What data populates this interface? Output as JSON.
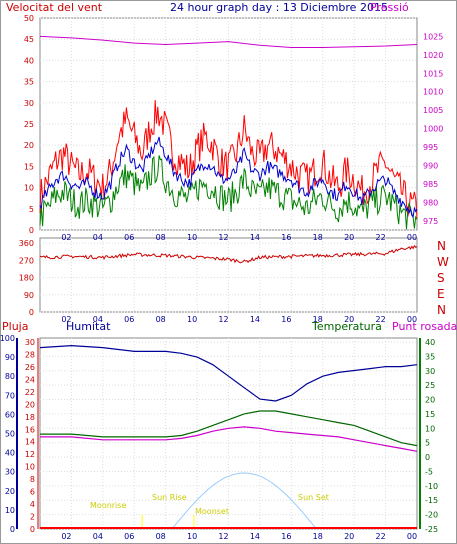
{
  "header": {
    "left_label": "Velocitat del vent",
    "title": "24 hour graph day : 13 Diciembre 2015",
    "right_label": "Pressió"
  },
  "x_ticks": [
    "02",
    "04",
    "06",
    "08",
    "10",
    "12",
    "14",
    "16",
    "18",
    "20",
    "22",
    "00"
  ],
  "bottom_labels": {
    "pluja": "Pluja",
    "humitat": "Humitat",
    "temperatura": "Temperatura",
    "punt_rosada": "Punt rosada"
  },
  "astro_labels": {
    "moonrise": "Moonrise",
    "sunrise": "Sun Rise",
    "moonset": "Moonset",
    "sunset": "Sun Set"
  },
  "compass": [
    "N",
    "W",
    "S",
    "E",
    "N"
  ],
  "colors": {
    "wind": "#cc0000",
    "gust": "#ff0000",
    "avg": "#0000cc",
    "low": "#008000",
    "pressure": "#cc00cc",
    "humidity": "#000099",
    "temperature": "#006600",
    "dewpoint": "#cc00cc",
    "rain": "#ff0000",
    "sun": "#99ccff",
    "moon": "#ffff00"
  },
  "chart_data": [
    {
      "type": "line",
      "name": "wind-chart",
      "x_range": [
        0,
        24
      ],
      "y_left_ticks": [
        0,
        5,
        10,
        15,
        20,
        25,
        30,
        35,
        40,
        45,
        50
      ],
      "y_right_ticks": [
        975,
        980,
        985,
        990,
        995,
        1000,
        1005,
        1010,
        1015,
        1020,
        1025
      ],
      "ylim_left": [
        0,
        50
      ],
      "ylim_right": [
        972.5,
        1030
      ],
      "series": [
        {
          "role": "gust",
          "x": [
            0,
            0.5,
            1,
            1.5,
            2,
            2.5,
            3,
            3.5,
            4,
            4.5,
            5,
            5.5,
            6,
            6.5,
            7,
            7.5,
            8,
            8.5,
            9,
            9.5,
            10,
            10.5,
            11,
            11.5,
            12,
            12.5,
            13,
            13.5,
            14,
            14.5,
            15,
            15.5,
            16,
            16.5,
            17,
            17.5,
            18,
            18.5,
            19,
            19.5,
            20,
            20.5,
            21,
            21.5,
            22,
            22.5,
            23,
            23.5,
            24
          ],
          "values": [
            8,
            12,
            16,
            18,
            15,
            13,
            14,
            12,
            10,
            14,
            22,
            26,
            22,
            18,
            24,
            28,
            24,
            18,
            16,
            14,
            19,
            22,
            20,
            16,
            15,
            18,
            24,
            18,
            17,
            20,
            19,
            17,
            15,
            13,
            12,
            14,
            16,
            12,
            10,
            14,
            12,
            9,
            11,
            14,
            16,
            12,
            9,
            6,
            5
          ]
        },
        {
          "role": "average",
          "x": [
            0,
            0.5,
            1,
            1.5,
            2,
            2.5,
            3,
            3.5,
            4,
            4.5,
            5,
            5.5,
            6,
            6.5,
            7,
            7.5,
            8,
            8.5,
            9,
            9.5,
            10,
            10.5,
            11,
            11.5,
            12,
            12.5,
            13,
            13.5,
            14,
            14.5,
            15,
            15.5,
            16,
            16.5,
            17,
            17.5,
            18,
            18.5,
            19,
            19.5,
            20,
            20.5,
            21,
            21.5,
            22,
            22.5,
            23,
            23.5,
            24
          ],
          "values": [
            6,
            9,
            12,
            13,
            11,
            10,
            11,
            9,
            8,
            11,
            16,
            19,
            16,
            14,
            18,
            21,
            18,
            14,
            12,
            11,
            14,
            16,
            15,
            12,
            12,
            14,
            18,
            14,
            13,
            15,
            14,
            13,
            12,
            10,
            9,
            11,
            12,
            9,
            8,
            11,
            9,
            7,
            9,
            11,
            12,
            9,
            7,
            5,
            4
          ]
        },
        {
          "role": "low",
          "x": [
            0,
            0.5,
            1,
            1.5,
            2,
            2.5,
            3,
            3.5,
            4,
            4.5,
            5,
            5.5,
            6,
            6.5,
            7,
            7.5,
            8,
            8.5,
            9,
            9.5,
            10,
            10.5,
            11,
            11.5,
            12,
            12.5,
            13,
            13.5,
            14,
            14.5,
            15,
            15.5,
            16,
            16.5,
            17,
            17.5,
            18,
            18.5,
            19,
            19.5,
            20,
            20.5,
            21,
            21.5,
            22,
            22.5,
            23,
            23.5,
            24
          ],
          "values": [
            3,
            5,
            8,
            9,
            7,
            6,
            7,
            6,
            5,
            7,
            11,
            13,
            11,
            9,
            13,
            15,
            12,
            9,
            8,
            7,
            10,
            11,
            10,
            8,
            7,
            9,
            12,
            9,
            8,
            10,
            9,
            8,
            7,
            6,
            5,
            7,
            8,
            6,
            5,
            7,
            6,
            4,
            6,
            7,
            8,
            6,
            4,
            3,
            2
          ]
        },
        {
          "role": "pressure",
          "axis": "right",
          "x": [
            0,
            2,
            4,
            6,
            8,
            10,
            12,
            14,
            16,
            18,
            20,
            22,
            24
          ],
          "values": [
            1025,
            1024.6,
            1024,
            1023.2,
            1022.8,
            1023.2,
            1023.6,
            1022.6,
            1022,
            1022,
            1022.2,
            1022.4,
            1022.8
          ]
        }
      ]
    },
    {
      "type": "line",
      "name": "wind-direction-chart",
      "x_range": [
        0,
        24
      ],
      "y_left_ticks": [
        0,
        90,
        180,
        270,
        360
      ],
      "ylim": [
        0,
        360
      ],
      "series": [
        {
          "role": "direction",
          "x": [
            0,
            2,
            4,
            6,
            8,
            10,
            12,
            13,
            14,
            16,
            18,
            20,
            22,
            23,
            24
          ],
          "values": [
            285,
            290,
            285,
            300,
            295,
            285,
            275,
            262,
            285,
            290,
            295,
            300,
            305,
            330,
            340
          ]
        }
      ]
    },
    {
      "type": "line",
      "name": "temp-humidity-chart",
      "x_range": [
        0,
        24
      ],
      "y_left_outer_ticks": [
        0,
        10,
        20,
        30,
        40,
        50,
        60,
        70,
        80,
        90,
        100
      ],
      "y_left_inner_ticks": [
        0,
        2,
        4,
        6,
        8,
        10,
        12,
        14,
        16,
        18,
        20,
        22,
        24,
        26,
        28,
        30
      ],
      "y_right_ticks": [
        -25,
        -20,
        -15,
        -10,
        -5,
        0,
        5,
        10,
        15,
        20,
        25,
        30,
        35,
        40
      ],
      "ylim_humidity": [
        0,
        100
      ],
      "ylim_temperature": [
        -25,
        40
      ],
      "series": [
        {
          "role": "humidity",
          "x": [
            0,
            2,
            4,
            6,
            8,
            9,
            10,
            11,
            12,
            13,
            14,
            15,
            16,
            17,
            18,
            19,
            20,
            21,
            22,
            23,
            24
          ],
          "values": [
            95,
            96,
            95,
            93,
            93,
            92,
            90,
            86,
            80,
            74,
            68,
            67,
            70,
            76,
            80,
            82,
            83,
            84,
            85,
            85,
            86
          ]
        },
        {
          "role": "temperature",
          "x": [
            0,
            2,
            4,
            6,
            8,
            9,
            10,
            11,
            12,
            13,
            14,
            15,
            16,
            17,
            18,
            19,
            20,
            21,
            22,
            23,
            24
          ],
          "values": [
            8,
            8,
            7,
            7,
            7,
            7.5,
            9,
            11,
            13,
            15,
            16,
            16,
            15,
            14,
            13,
            12,
            11,
            9,
            7,
            5,
            4
          ]
        },
        {
          "role": "dewpoint",
          "x": [
            0,
            2,
            4,
            6,
            8,
            9,
            10,
            11,
            12,
            13,
            14,
            15,
            16,
            17,
            18,
            19,
            20,
            21,
            22,
            23,
            24
          ],
          "values": [
            7,
            7,
            6,
            6,
            6,
            6.5,
            7.5,
            9,
            10,
            10.5,
            10,
            9,
            8.5,
            8,
            7.5,
            7,
            6,
            5,
            4,
            3,
            2
          ]
        }
      ]
    }
  ]
}
